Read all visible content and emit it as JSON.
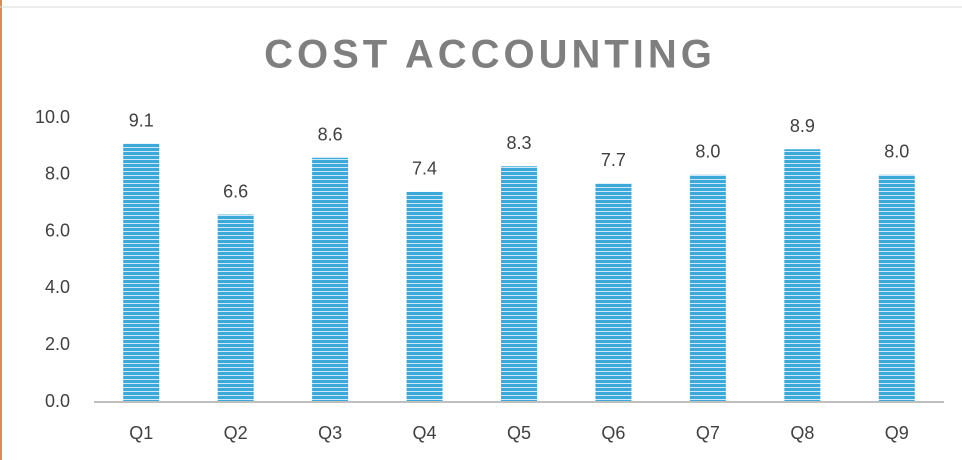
{
  "chart_data": {
    "type": "bar",
    "title": "COST ACCOUNTING",
    "categories": [
      "Q1",
      "Q2",
      "Q3",
      "Q4",
      "Q5",
      "Q6",
      "Q7",
      "Q8",
      "Q9"
    ],
    "values": [
      9.1,
      6.6,
      8.6,
      7.4,
      8.3,
      7.7,
      8.0,
      8.9,
      8.0
    ],
    "value_labels": [
      "9.1",
      "6.6",
      "8.6",
      "7.4",
      "8.3",
      "7.7",
      "8.0",
      "8.9",
      "8.0"
    ],
    "color": "#3ba9da",
    "ylim": [
      0,
      10
    ],
    "yticks": [
      {
        "value": 0,
        "label": "0.0"
      },
      {
        "value": 2,
        "label": "2.0"
      },
      {
        "value": 4,
        "label": "4.0"
      },
      {
        "value": 6,
        "label": "6.0"
      },
      {
        "value": 8,
        "label": "8.0"
      },
      {
        "value": 10,
        "label": "10.0"
      }
    ],
    "grid": false
  }
}
